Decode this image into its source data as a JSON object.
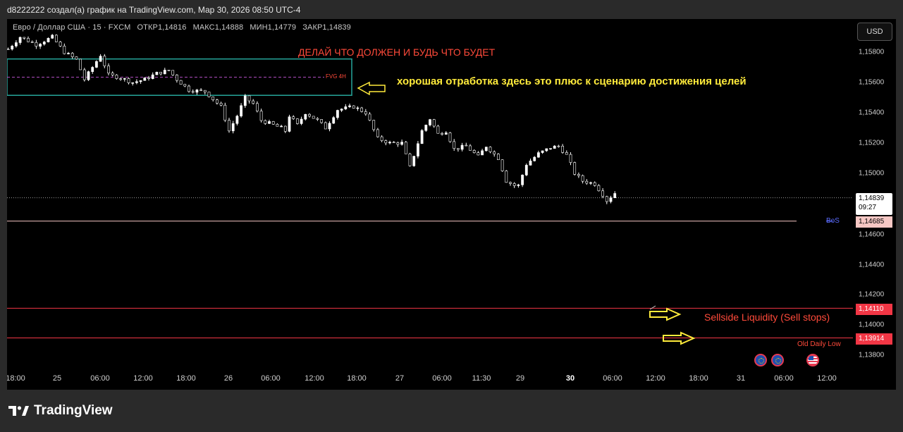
{
  "header": {
    "caption": "d8222222 создал(а) график на TradingView.com, Мар 30, 2026 08:50 UTC-4"
  },
  "legend": {
    "symbol": "Евро / Доллар США · 15 · FXCM",
    "open": "ОТКР1,14816",
    "high": "МАКС1,14888",
    "low": "МИН1,14779",
    "close": "ЗАКР1,14839"
  },
  "toolbar": {
    "currency_button": "USD"
  },
  "annotations": {
    "main_title": "ДЕЛАЙ ЧТО ДОЛЖЕН И БУДЬ ЧТО БУДЕТ",
    "good_reaction": "хорошая отработка здесь это плюс к сценарию достижения целей",
    "fvg": "FVG 4H",
    "sellside": "Sellside Liquidity (Sell stops)",
    "old_daily_low": "Old Daily Low",
    "bos": "BoS"
  },
  "price_tags": {
    "current_price": "1,14839",
    "countdown": "09:27",
    "bos_price": "1,14685",
    "sellside_price": "1,14110",
    "old_low_price": "1,13914"
  },
  "colors": {
    "background": "#000000",
    "candle": "#ffffff",
    "fvg_box": "#26a69a",
    "level_red": "#f23645",
    "bos_line": "#f6c7c4",
    "arrow": "#ffeb3b",
    "annotation_red": "#ff4a3a"
  },
  "chart_data": {
    "type": "candlestick",
    "title": "Евро / Доллар США · 15 · FXCM",
    "x_tick_labels": [
      "18:00",
      "25",
      "06:00",
      "12:00",
      "18:00",
      "26",
      "06:00",
      "12:00",
      "18:00",
      "27",
      "06:00",
      "11:30",
      "29",
      "30",
      "06:00",
      "12:00",
      "18:00",
      "31",
      "06:00",
      "12:00"
    ],
    "y_tick_labels": [
      "1,15800",
      "1,15600",
      "1,15400",
      "1,15200",
      "1,15000",
      "1,14600",
      "1,14400",
      "1,14200",
      "1,14000",
      "1,13800"
    ],
    "y_ticks": [
      1.158,
      1.156,
      1.154,
      1.152,
      1.15,
      1.146,
      1.144,
      1.142,
      1.14,
      1.138
    ],
    "ylim": [
      1.1375,
      1.1605
    ],
    "last_ohlc": {
      "open": 1.14816,
      "high": 1.14888,
      "low": 1.14779,
      "close": 1.14839
    },
    "current_price": 1.14839,
    "levels": [
      {
        "name": "BoS",
        "value": 1.14685
      },
      {
        "name": "Sellside Liquidity (Sell stops)",
        "value": 1.1411
      },
      {
        "name": "Old Daily Low",
        "value": 1.13914
      }
    ],
    "fvg_zone": {
      "label": "FVG 4H",
      "top": 1.15755,
      "bottom": 1.15515,
      "mid": 1.15635
    },
    "price_path": [
      [
        0,
        1.1582
      ],
      [
        3,
        1.159
      ],
      [
        7,
        1.1585
      ],
      [
        11,
        1.159
      ],
      [
        14,
        1.158
      ],
      [
        17,
        1.1575
      ],
      [
        19,
        1.1562
      ],
      [
        21,
        1.157
      ],
      [
        23,
        1.1578
      ],
      [
        25,
        1.1565
      ],
      [
        28,
        1.1563
      ],
      [
        31,
        1.156
      ],
      [
        34,
        1.1562
      ],
      [
        37,
        1.1566
      ],
      [
        40,
        1.1568
      ],
      [
        42,
        1.1562
      ],
      [
        45,
        1.1555
      ],
      [
        49,
        1.1554
      ],
      [
        53,
        1.1544
      ],
      [
        55,
        1.1528
      ],
      [
        57,
        1.1538
      ],
      [
        59,
        1.155
      ],
      [
        61,
        1.1546
      ],
      [
        63,
        1.1535
      ],
      [
        65,
        1.1533
      ],
      [
        68,
        1.153
      ],
      [
        69,
        1.1528
      ],
      [
        70,
        1.1538
      ],
      [
        72,
        1.1532
      ],
      [
        74,
        1.154
      ],
      [
        77,
        1.1535
      ],
      [
        79,
        1.153
      ],
      [
        82,
        1.1542
      ],
      [
        86,
        1.1544
      ],
      [
        89,
        1.154
      ],
      [
        92,
        1.1523
      ],
      [
        95,
        1.152
      ],
      [
        98,
        1.152
      ],
      [
        100,
        1.1504
      ],
      [
        103,
        1.1528
      ],
      [
        105,
        1.1536
      ],
      [
        107,
        1.1526
      ],
      [
        109,
        1.1528
      ],
      [
        111,
        1.1516
      ],
      [
        114,
        1.1518
      ],
      [
        117,
        1.1511
      ],
      [
        119,
        1.1518
      ],
      [
        122,
        1.151
      ],
      [
        124,
        1.1495
      ],
      [
        126,
        1.1492
      ],
      [
        127,
        1.1492
      ],
      [
        129,
        1.1506
      ],
      [
        132,
        1.1513
      ],
      [
        135,
        1.1517
      ],
      [
        137,
        1.1518
      ],
      [
        139,
        1.1512
      ],
      [
        141,
        1.15
      ],
      [
        143,
        1.1495
      ],
      [
        146,
        1.1493
      ],
      [
        148,
        1.1486
      ],
      [
        149,
        1.1482
      ],
      [
        151,
        1.1487
      ]
    ],
    "grid": false
  }
}
